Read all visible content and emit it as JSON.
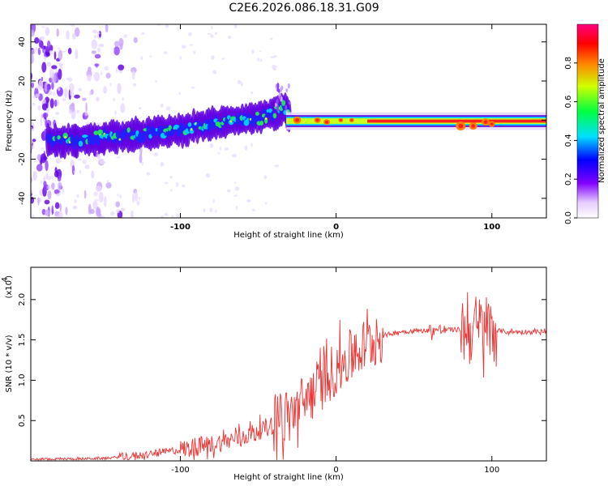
{
  "title": "C2E6.2026.086.18.31.G09",
  "chart_data": [
    {
      "type": "heatmap",
      "name": "spectrogram",
      "xlabel": "Height of straight line (km)",
      "ylabel": "Frequency (Hz)",
      "xlim": [
        -196,
        135
      ],
      "ylim": [
        -50,
        49
      ],
      "xticks": [
        -100,
        0,
        100
      ],
      "yticks": [
        -40,
        -20,
        0,
        20,
        40
      ],
      "ridge": {
        "x": [
          -180,
          -160,
          -140,
          -120,
          -100,
          -80,
          -60,
          -40,
          -33,
          -30,
          -20,
          0,
          20,
          40,
          60,
          80,
          90,
          100,
          135
        ],
        "y": [
          -11,
          -10,
          -8,
          -7,
          -5,
          -2,
          0,
          3,
          7,
          1,
          0,
          0,
          -1,
          -1,
          -1,
          -3,
          -2,
          -1,
          -1
        ]
      },
      "colorbar": {
        "label": "Normalized spectral amplitude",
        "ticks": [
          "0.0",
          "0.2",
          "0.4",
          "0.6",
          "0.8"
        ],
        "range": [
          0,
          1
        ]
      }
    },
    {
      "type": "line",
      "name": "snr",
      "xlabel": "Height of straight line (km)",
      "ylabel": "SNR (10 * v/v)",
      "multiplier_label": "(x10",
      "multiplier_exp": "4",
      "xlim": [
        -196,
        135
      ],
      "ylim": [
        0,
        2.4
      ],
      "xticks": [
        -100,
        0,
        100
      ],
      "yticks": [
        "0.5",
        "1.0",
        "1.5",
        "2.0"
      ],
      "envelope": {
        "x": [
          -196,
          -150,
          -120,
          -100,
          -80,
          -60,
          -40,
          -30,
          -20,
          -10,
          0,
          10,
          20,
          30,
          40,
          60,
          80,
          85,
          90,
          95,
          100,
          110,
          135
        ],
        "y": [
          0.02,
          0.03,
          0.08,
          0.14,
          0.2,
          0.3,
          0.45,
          0.55,
          0.75,
          0.95,
          1.15,
          1.3,
          1.45,
          1.55,
          1.6,
          1.62,
          1.63,
          1.62,
          1.63,
          1.65,
          1.62,
          1.6,
          1.6
        ]
      },
      "color": "#ee3333"
    }
  ]
}
